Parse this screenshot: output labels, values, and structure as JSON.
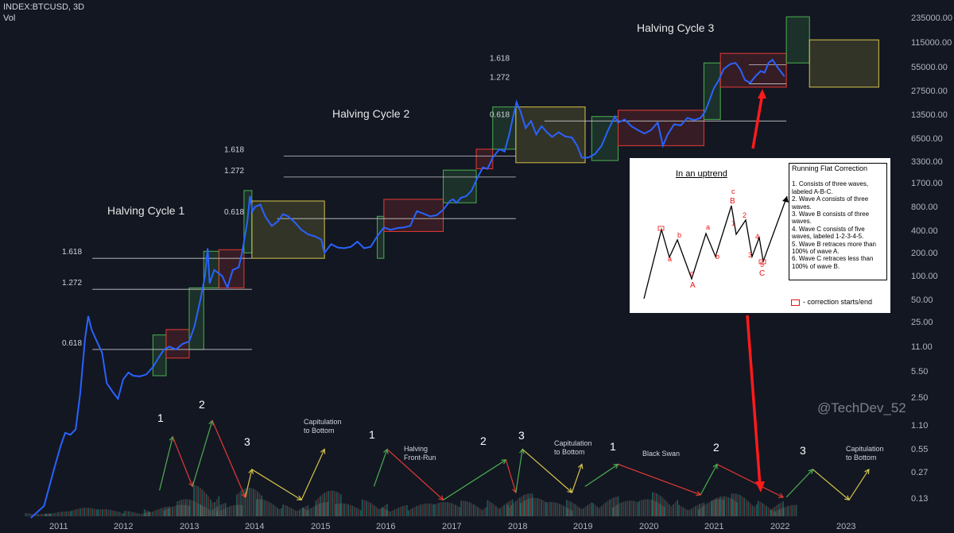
{
  "header": {
    "symbol": "INDEX:BTCUSD, 3D",
    "volume_label": "Vol"
  },
  "chart_data": {
    "type": "line",
    "series": [
      {
        "values": [
          [
            2010.6,
            0.07
          ],
          [
            2010.8,
            0.1
          ],
          [
            2010.95,
            0.3
          ],
          [
            2011.05,
            0.6
          ],
          [
            2011.12,
            0.9
          ],
          [
            2011.2,
            0.85
          ],
          [
            2011.28,
            1.0
          ],
          [
            2011.35,
            3.0
          ],
          [
            2011.42,
            15.0
          ],
          [
            2011.47,
            30.0
          ],
          [
            2011.52,
            20.0
          ],
          [
            2011.6,
            14.0
          ],
          [
            2011.68,
            10.0
          ],
          [
            2011.75,
            4.0
          ],
          [
            2011.85,
            3.0
          ],
          [
            2011.92,
            2.5
          ],
          [
            2012.0,
            4.5
          ],
          [
            2012.08,
            5.5
          ],
          [
            2012.15,
            5.0
          ],
          [
            2012.25,
            4.9
          ],
          [
            2012.35,
            5.2
          ],
          [
            2012.45,
            6.5
          ],
          [
            2012.55,
            9.0
          ],
          [
            2012.62,
            11.0
          ],
          [
            2012.7,
            12.0
          ],
          [
            2012.8,
            11.0
          ],
          [
            2012.9,
            13.0
          ],
          [
            2013.0,
            14.0
          ],
          [
            2013.08,
            22.0
          ],
          [
            2013.16,
            45.0
          ],
          [
            2013.24,
            100.0
          ],
          [
            2013.28,
            230.0
          ],
          [
            2013.31,
            80.0
          ],
          [
            2013.38,
            120.0
          ],
          [
            2013.5,
            100.0
          ],
          [
            2013.58,
            70.0
          ],
          [
            2013.66,
            120.0
          ],
          [
            2013.75,
            130.0
          ],
          [
            2013.8,
            200.0
          ],
          [
            2013.88,
            500.0
          ],
          [
            2013.92,
            1100.0
          ],
          [
            2013.96,
            700.0
          ],
          [
            2014.0,
            800.0
          ],
          [
            2014.08,
            850.0
          ],
          [
            2014.15,
            600.0
          ],
          [
            2014.25,
            450.0
          ],
          [
            2014.35,
            520.0
          ],
          [
            2014.42,
            640.0
          ],
          [
            2014.5,
            600.0
          ],
          [
            2014.6,
            500.0
          ],
          [
            2014.7,
            400.0
          ],
          [
            2014.8,
            350.0
          ],
          [
            2014.9,
            330.0
          ],
          [
            2015.0,
            300.0
          ],
          [
            2015.05,
            200.0
          ],
          [
            2015.15,
            260.0
          ],
          [
            2015.25,
            235.0
          ],
          [
            2015.35,
            230.0
          ],
          [
            2015.45,
            240.0
          ],
          [
            2015.55,
            280.0
          ],
          [
            2015.65,
            230.0
          ],
          [
            2015.75,
            240.0
          ],
          [
            2015.85,
            330.0
          ],
          [
            2015.95,
            430.0
          ],
          [
            2016.05,
            400.0
          ],
          [
            2016.15,
            420.0
          ],
          [
            2016.25,
            430.0
          ],
          [
            2016.35,
            450.0
          ],
          [
            2016.45,
            700.0
          ],
          [
            2016.55,
            650.0
          ],
          [
            2016.65,
            600.0
          ],
          [
            2016.75,
            620.0
          ],
          [
            2016.85,
            730.0
          ],
          [
            2016.95,
            950.0
          ],
          [
            2017.0,
            1000.0
          ],
          [
            2017.05,
            900.0
          ],
          [
            2017.12,
            1050.0
          ],
          [
            2017.2,
            1100.0
          ],
          [
            2017.28,
            1300.0
          ],
          [
            2017.38,
            2000.0
          ],
          [
            2017.45,
            2600.0
          ],
          [
            2017.52,
            2500.0
          ],
          [
            2017.6,
            3500.0
          ],
          [
            2017.7,
            4500.0
          ],
          [
            2017.78,
            4200.0
          ],
          [
            2017.85,
            7000.0
          ],
          [
            2017.9,
            11000.0
          ],
          [
            2017.96,
            18500.0
          ],
          [
            2018.02,
            14000.0
          ],
          [
            2018.1,
            8500.0
          ],
          [
            2018.18,
            10500.0
          ],
          [
            2018.26,
            7000.0
          ],
          [
            2018.34,
            9000.0
          ],
          [
            2018.42,
            7500.0
          ],
          [
            2018.5,
            6500.0
          ],
          [
            2018.6,
            7500.0
          ],
          [
            2018.7,
            6600.0
          ],
          [
            2018.8,
            6400.0
          ],
          [
            2018.88,
            5000.0
          ],
          [
            2018.95,
            3500.0
          ],
          [
            2019.05,
            3500.0
          ],
          [
            2019.15,
            3900.0
          ],
          [
            2019.25,
            5000.0
          ],
          [
            2019.35,
            8000.0
          ],
          [
            2019.45,
            12000.0
          ],
          [
            2019.5,
            10000.0
          ],
          [
            2019.6,
            11000.0
          ],
          [
            2019.7,
            9000.0
          ],
          [
            2019.8,
            8000.0
          ],
          [
            2019.9,
            7200.0
          ],
          [
            2020.0,
            8000.0
          ],
          [
            2020.1,
            10000.0
          ],
          [
            2020.18,
            5000.0
          ],
          [
            2020.25,
            7000.0
          ],
          [
            2020.35,
            9500.0
          ],
          [
            2020.45,
            9200.0
          ],
          [
            2020.55,
            11500.0
          ],
          [
            2020.65,
            10800.0
          ],
          [
            2020.75,
            11500.0
          ],
          [
            2020.82,
            14000.0
          ],
          [
            2020.88,
            19000.0
          ],
          [
            2020.95,
            28000.0
          ],
          [
            2021.02,
            35000.0
          ],
          [
            2021.1,
            50000.0
          ],
          [
            2021.2,
            58000.0
          ],
          [
            2021.28,
            60000.0
          ],
          [
            2021.35,
            50000.0
          ],
          [
            2021.42,
            36000.0
          ],
          [
            2021.5,
            33000.0
          ],
          [
            2021.58,
            40000.0
          ],
          [
            2021.66,
            47000.0
          ],
          [
            2021.72,
            45000.0
          ],
          [
            2021.78,
            60000.0
          ],
          [
            2021.84,
            66000.0
          ],
          [
            2021.9,
            55000.0
          ],
          [
            2021.96,
            47000.0
          ],
          [
            2022.02,
            40000.0
          ]
        ]
      }
    ],
    "volume": [
      [
        2010.7,
        0.025
      ],
      [
        2011.0,
        0.035
      ],
      [
        2011.4,
        0.06
      ],
      [
        2011.8,
        0.05
      ],
      [
        2012.2,
        0.04
      ],
      [
        2012.5,
        0.07
      ],
      [
        2012.8,
        0.08
      ],
      [
        2013.0,
        0.12
      ],
      [
        2013.25,
        0.22
      ],
      [
        2013.35,
        0.1
      ],
      [
        2013.6,
        0.08
      ],
      [
        2013.9,
        0.2
      ],
      [
        2014.2,
        0.12
      ],
      [
        2014.6,
        0.09
      ],
      [
        2014.9,
        0.1
      ],
      [
        2015.1,
        0.18
      ],
      [
        2015.4,
        0.09
      ],
      [
        2015.8,
        0.12
      ],
      [
        2016.1,
        0.08
      ],
      [
        2016.5,
        0.09
      ],
      [
        2016.9,
        0.1
      ],
      [
        2017.3,
        0.11
      ],
      [
        2017.7,
        0.13
      ],
      [
        2018.0,
        0.16
      ],
      [
        2018.2,
        0.13
      ],
      [
        2018.6,
        0.1
      ],
      [
        2018.9,
        0.12
      ],
      [
        2019.3,
        0.14
      ],
      [
        2019.6,
        0.11
      ],
      [
        2020.0,
        0.12
      ],
      [
        2020.2,
        0.17
      ],
      [
        2020.6,
        0.1
      ],
      [
        2020.9,
        0.12
      ],
      [
        2021.1,
        0.14
      ],
      [
        2021.4,
        0.16
      ],
      [
        2021.8,
        0.12
      ],
      [
        2022.0,
        0.08
      ]
    ],
    "xticks": [
      "2011",
      "2012",
      "2013",
      "2014",
      "2015",
      "2016",
      "2017",
      "2018",
      "2019",
      "2020",
      "2021",
      "2022",
      "2023"
    ],
    "yticks": [
      "235000.00",
      "115000.00",
      "55000.00",
      "27500.00",
      "13500.00",
      "6500.00",
      "3300.00",
      "1700.00",
      "800.00",
      "400.00",
      "200.00",
      "100.00",
      "50.00",
      "25.00",
      "11.00",
      "5.50",
      "2.50",
      "1.10",
      "0.55",
      "0.27",
      "0.13"
    ],
    "ylim": [
      0.065,
      240000
    ],
    "xlim": [
      2010.6,
      2023.85
    ],
    "log_scale": true,
    "grid": false,
    "colors": {
      "price": "#2962ff",
      "green": "#4caf50",
      "red": "#e53935",
      "yellow": "#d4c34a",
      "fib": "#c8c8c8",
      "arrow_red": "#ff1b1b"
    }
  },
  "cycles": [
    {
      "label": "Halving Cycle 1"
    },
    {
      "label": "Halving Cycle 2"
    },
    {
      "label": "Halving Cycle 3"
    }
  ],
  "fib_labels": [
    {
      "text": "0.618"
    },
    {
      "text": "1.272"
    },
    {
      "text": "1.618"
    },
    {
      "text": "0.618"
    },
    {
      "text": "1.272"
    },
    {
      "text": "1.618"
    },
    {
      "text": "0.618"
    },
    {
      "text": "1.272"
    },
    {
      "text": "1.618"
    }
  ],
  "wave_numbers": [
    "1",
    "2",
    "3",
    "1",
    "2",
    "3",
    "1",
    "2",
    "3"
  ],
  "wave_labels": [
    "Capitulation\nto Bottom",
    "Halving\nFront-Run",
    "Capitulation\nto Bottom",
    "Black Swan",
    "Capitulation\nto Bottom"
  ],
  "watermark": "@TechDev_52",
  "inset": {
    "title": "In an uptrend",
    "notes_title": "Running Flat Correction",
    "notes": [
      "1. Consists of three waves, labeled A-B-C.",
      "2. Wave A consists of three waves.",
      "3. Wave B consists of three waves.",
      "4. Wave C consists of five waves, labeled 1-2-3-4-5.",
      "5. Wave B retraces more than 100% of wave A.",
      "6. Wave C retraces less than 100% of wave B."
    ],
    "legend": "- correction starts/end",
    "wave_marks": [
      "A",
      "a",
      "b",
      "c",
      "B",
      "a",
      "b",
      "c",
      "C",
      "1",
      "2",
      "3",
      "4",
      "5"
    ]
  }
}
